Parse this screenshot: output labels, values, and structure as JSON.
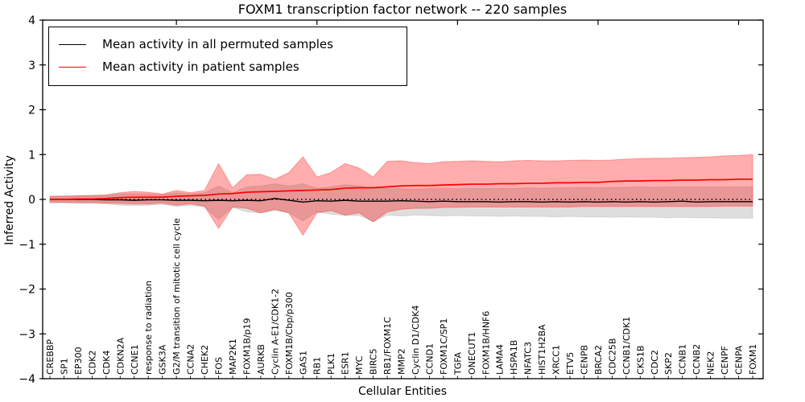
{
  "title": "FOXM1 transcription factor network -- 220 samples",
  "axes": {
    "x_label": "Cellular Entities",
    "y_label": "Inferred Activity",
    "ylim": [
      -4,
      4
    ],
    "y_tick_values": [
      4,
      3,
      2,
      1,
      0,
      -1,
      -2,
      -3,
      -4
    ],
    "y_tick_labels": [
      "4",
      "3",
      "2",
      "1",
      "0",
      "−1",
      "−2",
      "−3",
      "−4"
    ],
    "top_tick_indices": [
      9,
      19,
      29,
      39,
      49
    ],
    "grid": "off",
    "zero_line_style": "dotted"
  },
  "legend": {
    "position": "upper-left",
    "entries": [
      {
        "label": "Mean activity in all permuted samples",
        "color": "#000000"
      },
      {
        "label": "Mean activity in patient samples",
        "color": "#ff0000"
      }
    ]
  },
  "colors": {
    "permuted_line": "#000000",
    "permuted_band_fill": "rgba(0,0,0,0.13)",
    "permuted_band_edge": "rgba(0,0,0,0.10)",
    "patient_line": "#ff0000",
    "patient_band_fill": "rgba(255,0,0,0.32)",
    "patient_band_edge": "rgba(255,0,0,0.30)",
    "axis": "#000000"
  },
  "chart_data": {
    "type": "line",
    "title": "FOXM1 transcription factor network -- 220 samples",
    "xlabel": "Cellular Entities",
    "ylabel": "Inferred Activity",
    "ylim": [
      -4,
      4
    ],
    "legend_position": "upper-left",
    "categories": [
      "CREBBP",
      "SP1",
      "EP300",
      "CDK2",
      "CDK4",
      "CDKN2A",
      "CCNE1",
      "response to radiation",
      "GSK3A",
      "G2/M transition of mitotic cell cycle",
      "CCNA2",
      "CHEK2",
      "FOS",
      "MAP2K1",
      "FOXM1B/p19",
      "AURKB",
      "Cyclin A-E1/CDK1-2",
      "FOXM1B/Cbp/p300",
      "GAS1",
      "RB1",
      "PLK1",
      "ESR1",
      "MYC",
      "BIRC5",
      "RB1/FOXM1C",
      "MMP2",
      "Cyclin D1/CDK4",
      "CCND1",
      "FOXM1C/SP1",
      "TGFA",
      "ONECUT1",
      "FOXM1B/HNF6",
      "LAMA4",
      "HSPA1B",
      "NFATC3",
      "HIST1H2BA",
      "XRCC1",
      "ETV5",
      "CENPB",
      "BRCA2",
      "CDC25B",
      "CCNB1/CDK1",
      "CKS1B",
      "CDC2",
      "SKP2",
      "CCNB1",
      "CCNB2",
      "NEK2",
      "CENPF",
      "CENPA",
      "FOXM1"
    ],
    "series": [
      {
        "id": "permuted",
        "name": "Mean activity in all permuted samples",
        "line_color": "#000000",
        "band_fill": "rgba(0,0,0,0.13)",
        "band_edge": "rgba(0,0,0,0.10)",
        "mean": [
          0.0,
          0.0,
          0.0,
          0.0,
          -0.01,
          -0.01,
          -0.02,
          -0.01,
          -0.01,
          -0.02,
          -0.02,
          -0.03,
          -0.02,
          -0.03,
          -0.02,
          -0.03,
          0.02,
          -0.02,
          -0.06,
          -0.03,
          -0.04,
          -0.02,
          -0.04,
          -0.04,
          -0.04,
          -0.03,
          -0.04,
          -0.05,
          -0.04,
          -0.05,
          -0.05,
          -0.05,
          -0.06,
          -0.05,
          -0.05,
          -0.06,
          -0.05,
          -0.06,
          -0.05,
          -0.06,
          -0.05,
          -0.06,
          -0.05,
          -0.06,
          -0.05,
          -0.04,
          -0.06,
          -0.05,
          -0.05,
          -0.05,
          -0.05
        ],
        "upper": [
          0.08,
          0.08,
          0.08,
          0.08,
          0.09,
          0.12,
          0.13,
          0.12,
          0.1,
          0.15,
          0.12,
          0.15,
          0.3,
          0.15,
          0.28,
          0.3,
          0.35,
          0.3,
          0.35,
          0.25,
          0.28,
          0.33,
          0.3,
          0.25,
          0.25,
          0.24,
          0.23,
          0.24,
          0.25,
          0.24,
          0.25,
          0.24,
          0.25,
          0.25,
          0.26,
          0.25,
          0.26,
          0.26,
          0.27,
          0.26,
          0.27,
          0.27,
          0.28,
          0.27,
          0.28,
          0.28,
          0.28,
          0.28,
          0.28,
          0.28,
          0.28
        ],
        "lower": [
          -0.08,
          -0.08,
          -0.09,
          -0.09,
          -0.1,
          -0.13,
          -0.14,
          -0.13,
          -0.11,
          -0.16,
          -0.13,
          -0.17,
          -0.45,
          -0.18,
          -0.28,
          -0.3,
          -0.25,
          -0.3,
          -0.48,
          -0.28,
          -0.33,
          -0.36,
          -0.36,
          -0.5,
          -0.35,
          -0.37,
          -0.35,
          -0.36,
          -0.37,
          -0.36,
          -0.37,
          -0.37,
          -0.38,
          -0.37,
          -0.38,
          -0.38,
          -0.39,
          -0.38,
          -0.39,
          -0.39,
          -0.4,
          -0.39,
          -0.4,
          -0.4,
          -0.41,
          -0.4,
          -0.41,
          -0.41,
          -0.42,
          -0.42,
          -0.42
        ]
      },
      {
        "id": "patient",
        "name": "Mean activity in patient samples",
        "line_color": "#ff0000",
        "band_fill": "rgba(255,0,0,0.32)",
        "band_edge": "rgba(255,0,0,0.30)",
        "mean": [
          0.0,
          0.0,
          0.01,
          0.01,
          0.02,
          0.04,
          0.05,
          0.05,
          0.05,
          0.07,
          0.08,
          0.09,
          0.12,
          0.13,
          0.16,
          0.17,
          0.18,
          0.19,
          0.2,
          0.21,
          0.22,
          0.25,
          0.26,
          0.26,
          0.28,
          0.3,
          0.31,
          0.31,
          0.32,
          0.33,
          0.34,
          0.34,
          0.35,
          0.35,
          0.36,
          0.36,
          0.37,
          0.37,
          0.38,
          0.38,
          0.4,
          0.41,
          0.41,
          0.42,
          0.42,
          0.43,
          0.43,
          0.44,
          0.44,
          0.45,
          0.45
        ],
        "upper": [
          0.06,
          0.07,
          0.08,
          0.09,
          0.1,
          0.15,
          0.18,
          0.16,
          0.12,
          0.2,
          0.15,
          0.2,
          0.8,
          0.26,
          0.55,
          0.56,
          0.45,
          0.6,
          0.95,
          0.5,
          0.6,
          0.8,
          0.7,
          0.5,
          0.85,
          0.86,
          0.82,
          0.8,
          0.84,
          0.85,
          0.86,
          0.85,
          0.84,
          0.86,
          0.87,
          0.86,
          0.86,
          0.87,
          0.88,
          0.87,
          0.88,
          0.9,
          0.91,
          0.92,
          0.92,
          0.93,
          0.94,
          0.95,
          0.97,
          0.98,
          1.0
        ],
        "lower": [
          -0.06,
          -0.06,
          -0.07,
          -0.07,
          -0.08,
          -0.09,
          -0.1,
          -0.1,
          -0.08,
          -0.13,
          -0.1,
          -0.15,
          -0.65,
          -0.17,
          -0.2,
          -0.3,
          -0.22,
          -0.3,
          -0.8,
          -0.3,
          -0.25,
          -0.35,
          -0.3,
          -0.5,
          -0.28,
          -0.22,
          -0.2,
          -0.2,
          -0.18,
          -0.18,
          -0.17,
          -0.17,
          -0.17,
          -0.17,
          -0.17,
          -0.17,
          -0.17,
          -0.17,
          -0.16,
          -0.16,
          -0.16,
          -0.16,
          -0.16,
          -0.16,
          -0.16,
          -0.16,
          -0.16,
          -0.16,
          -0.15,
          -0.15,
          -0.15
        ]
      }
    ]
  }
}
